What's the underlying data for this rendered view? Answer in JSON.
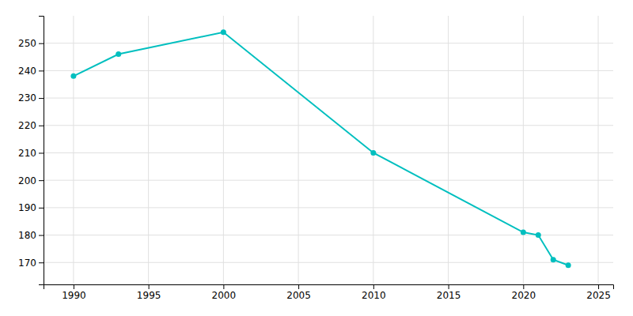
{
  "chart_data": {
    "type": "line",
    "x": [
      1990,
      1993,
      2000,
      2010,
      2020,
      2021,
      2022,
      2023
    ],
    "values": [
      238,
      246,
      254,
      210,
      181,
      180,
      171,
      169
    ],
    "color": "#00BFBF",
    "marker": "circle",
    "xlim": [
      1988,
      2026
    ],
    "ylim": [
      162,
      260
    ],
    "xticks": [
      1990,
      1995,
      2000,
      2005,
      2010,
      2015,
      2020,
      2025
    ],
    "yticks": [
      170,
      180,
      190,
      200,
      210,
      220,
      230,
      240,
      250
    ],
    "grid": true
  }
}
